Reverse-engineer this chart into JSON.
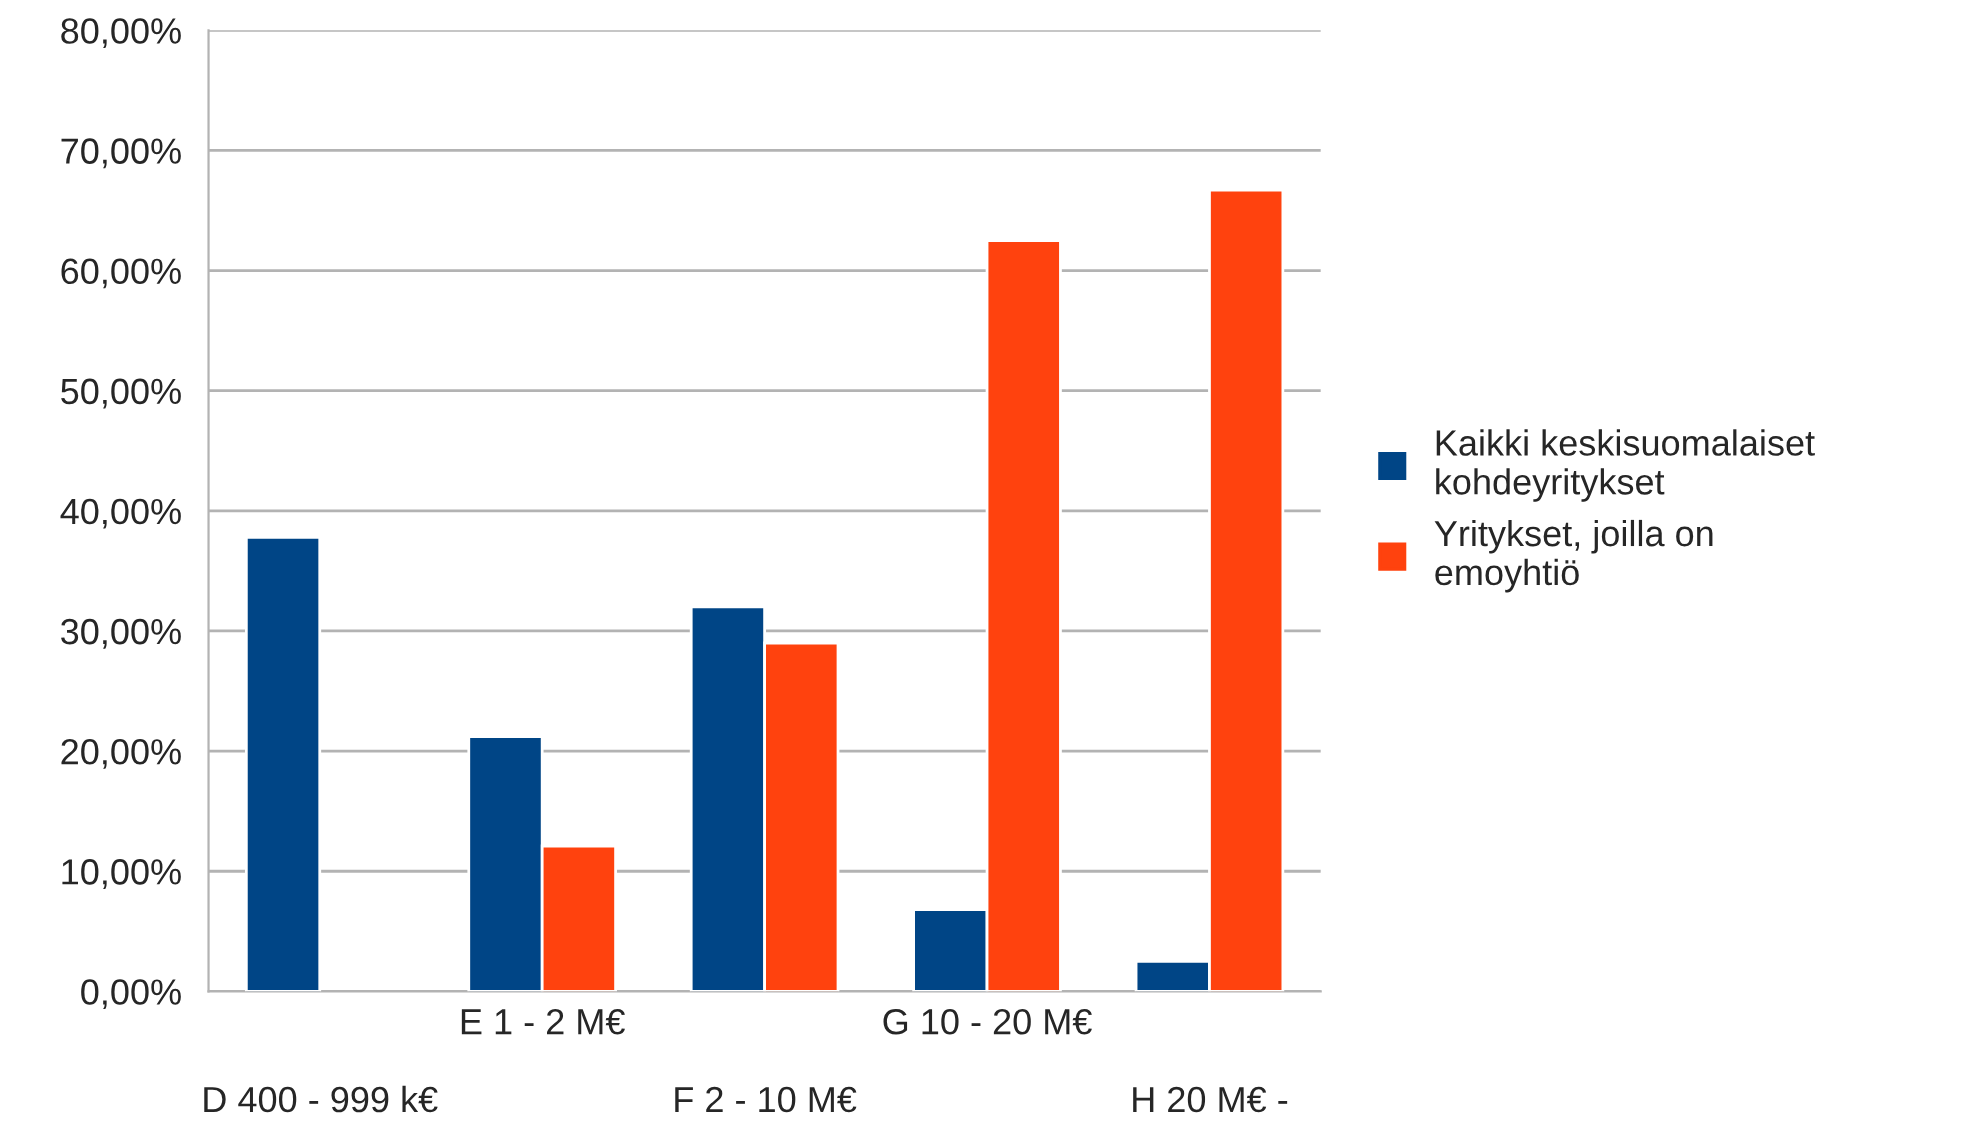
{
  "chart_data": {
    "type": "bar",
    "categories": [
      "D 400 - 999 k€",
      "E 1 - 2 M€",
      "F 2 - 10 M€",
      "G 10 - 20 M€",
      "H 20 M€ -"
    ],
    "series": [
      {
        "name": "Kaikki keskisuomalaiset kohdeyritykset",
        "color": "#004586",
        "values": [
          37.8,
          21.2,
          32.0,
          6.8,
          2.5
        ]
      },
      {
        "name": "Yritykset, joilla on emoyhtiö",
        "color": "#ff420e",
        "values": [
          null,
          12.1,
          29.0,
          62.5,
          66.7
        ]
      }
    ],
    "ylim": [
      0,
      80
    ],
    "yticks": [
      {
        "value": 0,
        "label": "0,00%"
      },
      {
        "value": 10,
        "label": "10,00%"
      },
      {
        "value": 20,
        "label": "20,00%"
      },
      {
        "value": 30,
        "label": "30,00%"
      },
      {
        "value": 40,
        "label": "40,00%"
      },
      {
        "value": 50,
        "label": "50,00%"
      },
      {
        "value": 60,
        "label": "60,00%"
      },
      {
        "value": 70,
        "label": "70,00%"
      },
      {
        "value": 80,
        "label": "80,00%"
      }
    ],
    "grid": "y",
    "legend": "right"
  }
}
